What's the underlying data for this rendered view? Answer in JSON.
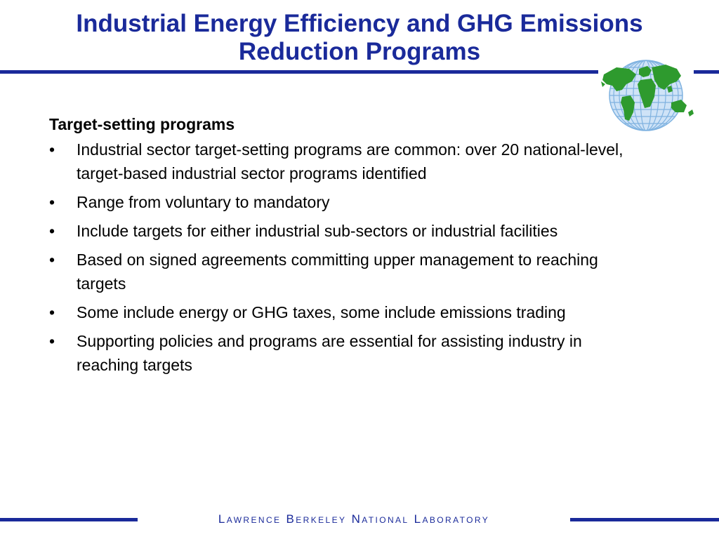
{
  "title": {
    "line1": "Industrial Energy Efficiency and GHG Emissions",
    "line2": "Reduction Programs"
  },
  "logo": {
    "icon": "globe-icon",
    "colors": {
      "ocean": "#cfe3f7",
      "grid": "#7fb2e0",
      "land": "#2e9a2e"
    }
  },
  "content": {
    "heading": "Target-setting programs",
    "bullet_symbol": "•",
    "bullets": [
      "Industrial sector target-setting programs are common: over 20 national-level, target-based industrial sector programs identified",
      "Range from voluntary to mandatory",
      "Include targets for either industrial sub-sectors or industrial facilities",
      "Based on signed agreements committing upper management to reaching targets",
      "Some include energy or GHG taxes, some include emissions trading",
      "Supporting policies and programs are essential for assisting industry in reaching targets"
    ]
  },
  "footer": {
    "text": "Lawrence Berkeley National Laboratory"
  },
  "colors": {
    "accent": "#1a2a9a",
    "text": "#000000",
    "background": "#ffffff"
  }
}
